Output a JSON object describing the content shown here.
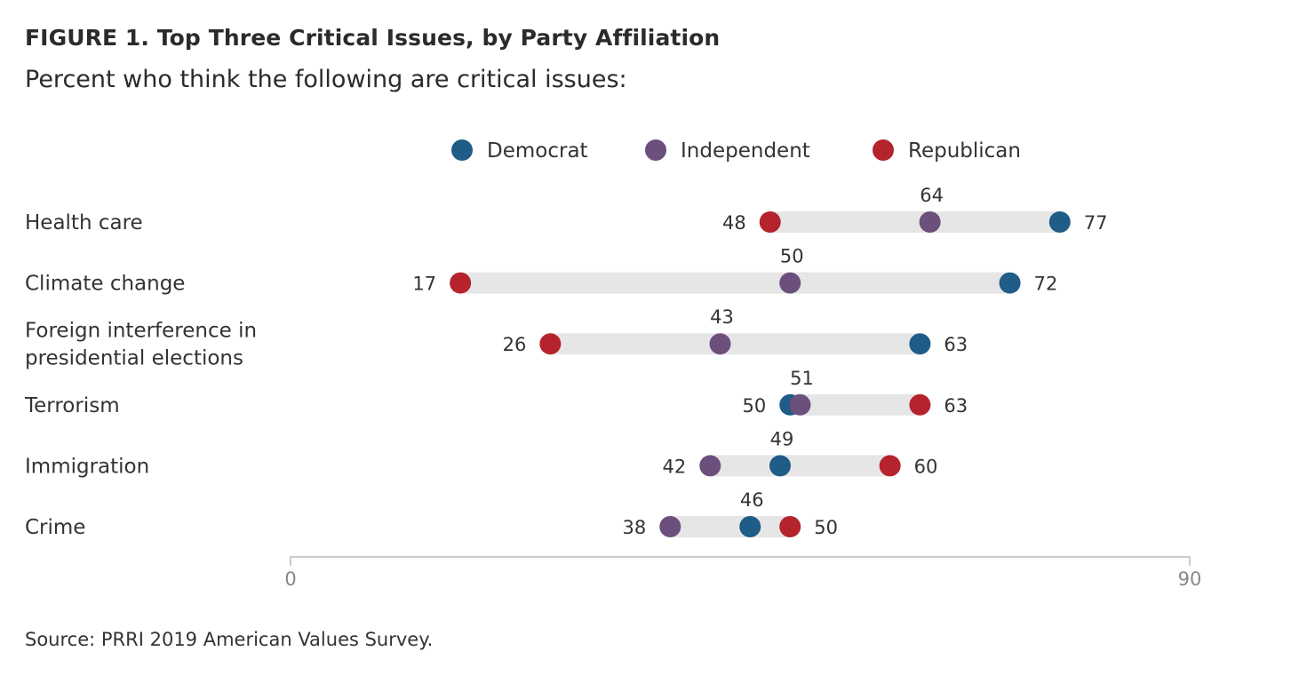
{
  "title": "FIGURE 1. Top Three Critical Issues, by Party Affiliation",
  "subtitle": "Percent who think the following are critical issues:",
  "source": "Source: PRRI 2019 American Values Survey.",
  "colors": {
    "Democrat": "#1f5c87",
    "Independent": "#6b4f7c",
    "Republican": "#b5232c",
    "range_bar": "#e6e6e6",
    "axis": "#cccccc"
  },
  "chart_data": {
    "type": "dot",
    "xlim": [
      0,
      90
    ],
    "x_ticks": [
      "0",
      "90"
    ],
    "legend": [
      {
        "name": "Democrat",
        "color": "#1f5c87"
      },
      {
        "name": "Independent",
        "color": "#6b4f7c"
      },
      {
        "name": "Republican",
        "color": "#b5232c"
      }
    ],
    "legend_position": "top",
    "categories": [
      [
        "Health care"
      ],
      [
        "Climate change"
      ],
      [
        "Foreign interference in",
        "presidential elections"
      ],
      [
        "Terrorism"
      ],
      [
        "Immigration"
      ],
      [
        "Crime"
      ]
    ],
    "series": [
      {
        "name": "Democrat",
        "values": [
          77,
          72,
          63,
          50,
          49,
          46
        ]
      },
      {
        "name": "Independent",
        "values": [
          64,
          50,
          43,
          51,
          42,
          38
        ]
      },
      {
        "name": "Republican",
        "values": [
          48,
          17,
          26,
          63,
          60,
          50
        ]
      }
    ]
  }
}
